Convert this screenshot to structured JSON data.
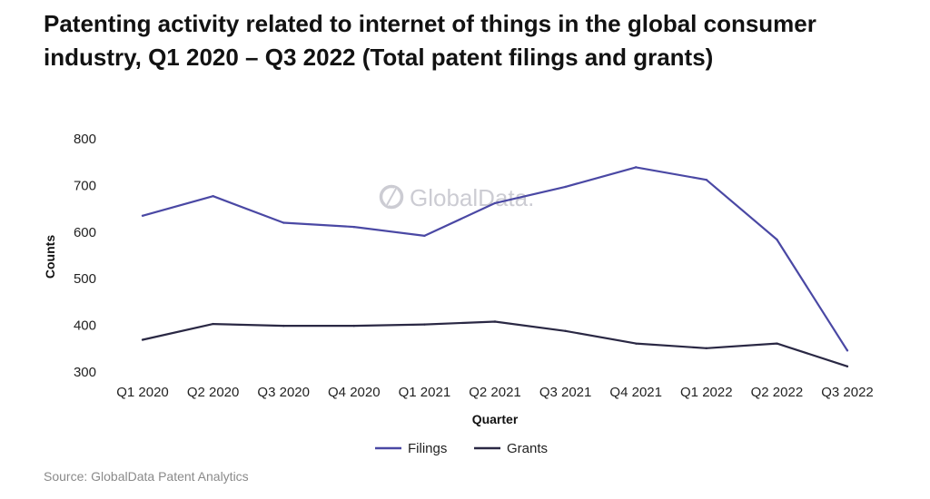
{
  "colors": {
    "filings": "#4a48a4",
    "grants": "#2a2844",
    "watermark": "#c7c7cf"
  },
  "chart_data": {
    "type": "line",
    "title": "Patenting activity related to internet of things in the global consumer industry, Q1 2020 – Q3 2022 (Total patent filings and grants)",
    "xlabel": "Quarter",
    "ylabel": "Counts",
    "ylim": [
      300,
      800
    ],
    "yticks": [
      300,
      400,
      500,
      600,
      700,
      800
    ],
    "categories": [
      "Q1 2020",
      "Q2 2020",
      "Q3 2020",
      "Q4 2020",
      "Q1 2021",
      "Q2 2021",
      "Q3 2021",
      "Q4 2021",
      "Q1 2022",
      "Q2 2022",
      "Q3 2022"
    ],
    "series": [
      {
        "name": "Filings",
        "values": [
          635,
          677,
          620,
          611,
          592,
          662,
          697,
          739,
          712,
          584,
          346
        ]
      },
      {
        "name": "Grants",
        "values": [
          369,
          403,
          399,
          399,
          402,
          408,
          388,
          361,
          351,
          361,
          312
        ]
      }
    ],
    "legend": "bottom-center",
    "grid": false
  },
  "watermark": "GlobalData.",
  "source": "Source: GlobalData Patent Analytics"
}
